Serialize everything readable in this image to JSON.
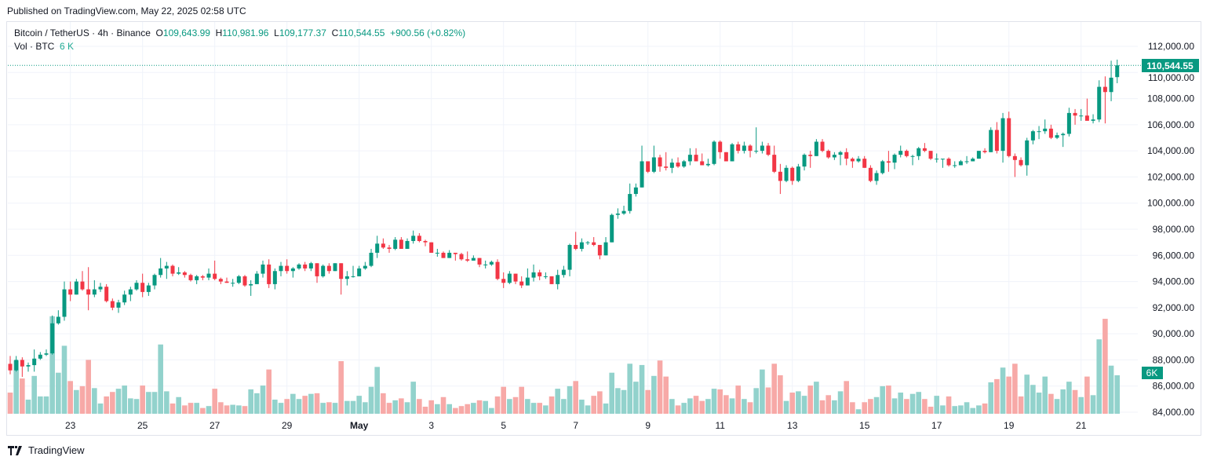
{
  "published": "Published on TradingView.com, May 22, 2025 02:58 UTC",
  "legend": {
    "symbol": "Bitcoin / TetherUS · 4h · Binance",
    "o_label": "O",
    "o_value": "109,643.99",
    "h_label": "H",
    "h_value": "110,981.96",
    "l_label": "L",
    "l_value": "109,177.37",
    "c_label": "C",
    "c_value": "110,544.55",
    "change": "+900.56 (+0.82%)",
    "vol_label": "Vol · BTC",
    "vol_value": "6 K"
  },
  "footer": {
    "brand": "TradingView"
  },
  "colors": {
    "up": "#089981",
    "down": "#f23645",
    "vol_up": "#92d2cc",
    "vol_down": "#f7a9a7",
    "grid": "#f0f3fa"
  },
  "chart_data": {
    "type": "candlestick",
    "symbol": "BTCUSDT",
    "interval": "4h",
    "first_candle": "2025-04-21 08:00",
    "columns": [
      "open",
      "high",
      "low",
      "close",
      "volume"
    ],
    "ylim": [
      84000,
      112000
    ],
    "y_ticks": [
      "112,000.00",
      "110,000.00",
      "108,000.00",
      "106,000.00",
      "104,000.00",
      "102,000.00",
      "100,000.00",
      "98,000.00",
      "96,000.00",
      "94,000.00",
      "92,000.00",
      "90,000.00",
      "88,000.00",
      "86,000.00",
      "84,000.00"
    ],
    "last_price_label": "110,544.55",
    "last_volume_label": "6K",
    "x_ticks": [
      {
        "label": "23",
        "date": "2025-04-23"
      },
      {
        "label": "25",
        "date": "2025-04-25"
      },
      {
        "label": "27",
        "date": "2025-04-27"
      },
      {
        "label": "29",
        "date": "2025-04-29"
      },
      {
        "label": "May",
        "date": "2025-05-01"
      },
      {
        "label": "3",
        "date": "2025-05-03"
      },
      {
        "label": "5",
        "date": "2025-05-05"
      },
      {
        "label": "7",
        "date": "2025-05-07"
      },
      {
        "label": "9",
        "date": "2025-05-09"
      },
      {
        "label": "11",
        "date": "2025-05-11"
      },
      {
        "label": "13",
        "date": "2025-05-13"
      },
      {
        "label": "15",
        "date": "2025-05-15"
      },
      {
        "label": "17",
        "date": "2025-05-17"
      },
      {
        "label": "19",
        "date": "2025-05-19"
      },
      {
        "label": "21",
        "date": "2025-05-21"
      }
    ],
    "grid": true,
    "candles": [
      [
        87700,
        88300,
        86900,
        87200,
        3300
      ],
      [
        87200,
        88300,
        87100,
        88000,
        8300
      ],
      [
        88000,
        88200,
        86700,
        87500,
        5500
      ],
      [
        87500,
        87800,
        87100,
        87600,
        2200
      ],
      [
        87600,
        88800,
        87100,
        88100,
        5900
      ],
      [
        88100,
        88600,
        88000,
        88400,
        2700
      ],
      [
        88400,
        88800,
        88300,
        88500,
        2700
      ],
      [
        88500,
        91400,
        88400,
        90800,
        15200
      ],
      [
        90800,
        91800,
        90700,
        91300,
        6400
      ],
      [
        91300,
        94000,
        91000,
        93400,
        10600
      ],
      [
        93400,
        94000,
        92500,
        93000,
        5100
      ],
      [
        93000,
        94200,
        93000,
        94000,
        3700
      ],
      [
        94000,
        94800,
        93300,
        93400,
        4300
      ],
      [
        93400,
        95100,
        91800,
        93000,
        8400
      ],
      [
        93000,
        94100,
        92800,
        93400,
        4000
      ],
      [
        93400,
        93900,
        93200,
        93600,
        1600
      ],
      [
        93600,
        93800,
        92400,
        92500,
        2700
      ],
      [
        92500,
        92700,
        91800,
        92000,
        3400
      ],
      [
        92000,
        92600,
        91600,
        92400,
        3900
      ],
      [
        92400,
        93300,
        92200,
        93000,
        4400
      ],
      [
        93000,
        93600,
        92500,
        93400,
        2400
      ],
      [
        93400,
        94100,
        93300,
        93900,
        2300
      ],
      [
        93900,
        94600,
        92800,
        93200,
        4400
      ],
      [
        93200,
        93900,
        92900,
        93700,
        3400
      ],
      [
        93700,
        94600,
        93400,
        94500,
        3400
      ],
      [
        94500,
        95800,
        94300,
        95000,
        10800
      ],
      [
        95000,
        95500,
        94200,
        95200,
        3500
      ],
      [
        95200,
        95300,
        94400,
        94600,
        1600
      ],
      [
        94600,
        95100,
        94500,
        94700,
        2600
      ],
      [
        94700,
        94800,
        94300,
        94500,
        1300
      ],
      [
        94500,
        94600,
        94000,
        94100,
        1700
      ],
      [
        94100,
        94500,
        93800,
        94400,
        1700
      ],
      [
        94400,
        94500,
        94100,
        94300,
        900
      ],
      [
        94300,
        95000,
        94100,
        94600,
        1200
      ],
      [
        94600,
        95600,
        94100,
        94200,
        3900
      ],
      [
        94200,
        94300,
        93800,
        94000,
        1800
      ],
      [
        94000,
        94300,
        93900,
        93900,
        1300
      ],
      [
        93900,
        94200,
        93600,
        93900,
        1400
      ],
      [
        93900,
        94500,
        93800,
        94400,
        1300
      ],
      [
        94400,
        94500,
        93600,
        93700,
        1200
      ],
      [
        93700,
        94100,
        92900,
        93800,
        3800
      ],
      [
        93800,
        94800,
        93800,
        94600,
        3200
      ],
      [
        94600,
        95600,
        94300,
        95300,
        4400
      ],
      [
        95300,
        95700,
        93500,
        93800,
        6900
      ],
      [
        93800,
        95000,
        93400,
        94800,
        2200
      ],
      [
        94800,
        95500,
        94400,
        95200,
        1700
      ],
      [
        95200,
        95700,
        94600,
        94800,
        2300
      ],
      [
        94800,
        95100,
        94300,
        95000,
        3100
      ],
      [
        95000,
        95400,
        94900,
        95300,
        2300
      ],
      [
        95300,
        95500,
        94800,
        95000,
        2800
      ],
      [
        95000,
        95500,
        94800,
        95400,
        3100
      ],
      [
        95400,
        95400,
        93900,
        94400,
        3200
      ],
      [
        94400,
        95300,
        94300,
        95200,
        1700
      ],
      [
        95200,
        95400,
        94600,
        94800,
        1800
      ],
      [
        94800,
        95400,
        94800,
        95400,
        1700
      ],
      [
        95400,
        95400,
        93000,
        94200,
        8200
      ],
      [
        94200,
        94800,
        93700,
        94400,
        2000
      ],
      [
        94400,
        95200,
        94300,
        94400,
        2000
      ],
      [
        94400,
        95200,
        94400,
        95000,
        2800
      ],
      [
        95000,
        95500,
        94900,
        95200,
        1800
      ],
      [
        95200,
        96500,
        95100,
        96200,
        4200
      ],
      [
        96200,
        97500,
        95800,
        96900,
        7300
      ],
      [
        96900,
        97300,
        96500,
        96600,
        3200
      ],
      [
        96600,
        96800,
        96200,
        96500,
        1700
      ],
      [
        96500,
        97400,
        96400,
        97200,
        2100
      ],
      [
        97200,
        97400,
        96500,
        96500,
        2400
      ],
      [
        96500,
        97300,
        96500,
        97100,
        1800
      ],
      [
        97100,
        97900,
        96900,
        97500,
        5000
      ],
      [
        97500,
        97700,
        97000,
        97100,
        2300
      ],
      [
        97100,
        97200,
        96700,
        97000,
        1100
      ],
      [
        97000,
        97000,
        96200,
        96200,
        2100
      ],
      [
        96200,
        96500,
        95900,
        96200,
        1500
      ],
      [
        96200,
        96300,
        95800,
        95800,
        2600
      ],
      [
        95800,
        96400,
        95800,
        96200,
        1500
      ],
      [
        96200,
        96200,
        95600,
        96100,
        900
      ],
      [
        96100,
        96200,
        95600,
        95700,
        1200
      ],
      [
        95700,
        96300,
        95500,
        95600,
        1500
      ],
      [
        95600,
        96000,
        95600,
        95800,
        1700
      ],
      [
        95800,
        95800,
        95100,
        95300,
        2100
      ],
      [
        95300,
        95600,
        95000,
        95300,
        2000
      ],
      [
        95300,
        95600,
        95200,
        95500,
        900
      ],
      [
        95500,
        95700,
        94100,
        94200,
        2700
      ],
      [
        94200,
        94700,
        93500,
        93900,
        4200
      ],
      [
        93900,
        94800,
        93800,
        94600,
        2300
      ],
      [
        94600,
        94600,
        93800,
        94000,
        2600
      ],
      [
        94000,
        94400,
        93500,
        93700,
        4200
      ],
      [
        93700,
        95000,
        93700,
        94300,
        2300
      ],
      [
        94300,
        95300,
        94000,
        94700,
        1700
      ],
      [
        94700,
        94900,
        94100,
        94400,
        1700
      ],
      [
        94400,
        94700,
        94200,
        94400,
        1300
      ],
      [
        94400,
        94400,
        93800,
        93800,
        2700
      ],
      [
        93800,
        94900,
        93400,
        94500,
        3900
      ],
      [
        94500,
        95200,
        94300,
        94900,
        2300
      ],
      [
        94900,
        96900,
        94400,
        96800,
        4300
      ],
      [
        96800,
        97800,
        96400,
        96500,
        5100
      ],
      [
        96500,
        97300,
        96300,
        97000,
        2200
      ],
      [
        97000,
        97100,
        96800,
        97000,
        1300
      ],
      [
        97000,
        97400,
        96700,
        96800,
        2800
      ],
      [
        96800,
        96800,
        95700,
        96000,
        3500
      ],
      [
        96000,
        97400,
        96000,
        97000,
        1600
      ],
      [
        97000,
        99200,
        97000,
        99100,
        6400
      ],
      [
        99100,
        99600,
        98800,
        99200,
        4000
      ],
      [
        99200,
        99800,
        99100,
        99400,
        3700
      ],
      [
        99400,
        101500,
        99200,
        100700,
        7800
      ],
      [
        100700,
        101500,
        100500,
        101200,
        5000
      ],
      [
        101200,
        104400,
        101200,
        103200,
        7600
      ],
      [
        103200,
        103200,
        102300,
        102400,
        3700
      ],
      [
        102400,
        104400,
        102300,
        103500,
        5900
      ],
      [
        103500,
        103700,
        102400,
        102800,
        8300
      ],
      [
        102800,
        103900,
        102500,
        102700,
        5800
      ],
      [
        102700,
        103400,
        102300,
        103100,
        2300
      ],
      [
        103100,
        103500,
        102700,
        102800,
        1300
      ],
      [
        102800,
        103300,
        102700,
        103200,
        1700
      ],
      [
        103200,
        104200,
        102900,
        103700,
        2400
      ],
      [
        103700,
        104200,
        103200,
        103200,
        2800
      ],
      [
        103200,
        103800,
        102900,
        102900,
        2000
      ],
      [
        102900,
        103400,
        102800,
        103000,
        2300
      ],
      [
        103000,
        104800,
        102900,
        104700,
        3900
      ],
      [
        104700,
        104800,
        103400,
        103900,
        3800
      ],
      [
        103900,
        103900,
        103200,
        103200,
        2900
      ],
      [
        103200,
        104600,
        103200,
        104500,
        2400
      ],
      [
        104500,
        104700,
        103800,
        104000,
        4400
      ],
      [
        104000,
        104700,
        103800,
        104400,
        2300
      ],
      [
        104400,
        104500,
        103500,
        104000,
        1800
      ],
      [
        104000,
        105800,
        103800,
        104000,
        4000
      ],
      [
        104000,
        104700,
        103800,
        104400,
        6900
      ],
      [
        104400,
        104600,
        103600,
        103700,
        4100
      ],
      [
        103700,
        104400,
        102300,
        102400,
        7800
      ],
      [
        102400,
        103000,
        100700,
        101700,
        6000
      ],
      [
        101700,
        102900,
        101600,
        102700,
        2000
      ],
      [
        102700,
        102800,
        101400,
        101700,
        3300
      ],
      [
        101700,
        103000,
        101600,
        102800,
        3500
      ],
      [
        102800,
        103800,
        102500,
        103700,
        2800
      ],
      [
        103700,
        104000,
        102700,
        103600,
        4400
      ],
      [
        103600,
        104900,
        103600,
        104700,
        5000
      ],
      [
        104700,
        104900,
        103900,
        104000,
        2100
      ],
      [
        104000,
        104100,
        103400,
        103500,
        2900
      ],
      [
        103500,
        103900,
        103300,
        103700,
        2100
      ],
      [
        103700,
        104000,
        102900,
        103900,
        3500
      ],
      [
        103900,
        104200,
        102900,
        103400,
        5100
      ],
      [
        103400,
        103500,
        102700,
        103200,
        1800
      ],
      [
        103200,
        103600,
        103100,
        103400,
        700
      ],
      [
        103400,
        103600,
        102700,
        102700,
        1800
      ],
      [
        102700,
        102900,
        101600,
        101700,
        2300
      ],
      [
        101700,
        102500,
        101400,
        102300,
        2600
      ],
      [
        102300,
        103300,
        102200,
        103200,
        4300
      ],
      [
        103200,
        104000,
        102400,
        103100,
        4400
      ],
      [
        103100,
        103800,
        102600,
        103700,
        2400
      ],
      [
        103700,
        104400,
        103500,
        104000,
        3300
      ],
      [
        104000,
        104100,
        103500,
        103600,
        2300
      ],
      [
        103600,
        103700,
        102900,
        103600,
        3100
      ],
      [
        103600,
        104300,
        103300,
        104200,
        3400
      ],
      [
        104200,
        104600,
        103900,
        104000,
        2300
      ],
      [
        104000,
        104000,
        103300,
        103400,
        1100
      ],
      [
        103400,
        103800,
        103100,
        103400,
        2800
      ],
      [
        103400,
        103400,
        102700,
        103400,
        1300
      ],
      [
        103400,
        103500,
        102800,
        102900,
        2700
      ],
      [
        102900,
        103200,
        102700,
        102900,
        1200
      ],
      [
        102900,
        103300,
        102900,
        103200,
        1300
      ],
      [
        103200,
        103600,
        103000,
        103200,
        1800
      ],
      [
        103200,
        103500,
        103200,
        103400,
        900
      ],
      [
        103400,
        104000,
        103400,
        104000,
        1300
      ],
      [
        104000,
        104200,
        103800,
        103900,
        1600
      ],
      [
        103900,
        105800,
        103900,
        105600,
        4900
      ],
      [
        105600,
        106200,
        103800,
        104000,
        5400
      ],
      [
        104000,
        106900,
        103100,
        106500,
        7200
      ],
      [
        106500,
        107000,
        103500,
        103600,
        5800
      ],
      [
        103600,
        103800,
        102000,
        103300,
        7800
      ],
      [
        103300,
        103500,
        102800,
        102900,
        2700
      ],
      [
        102900,
        105000,
        102100,
        104800,
        6100
      ],
      [
        104800,
        105600,
        104500,
        105500,
        4500
      ],
      [
        105500,
        105900,
        104900,
        105500,
        3300
      ],
      [
        105500,
        106400,
        105300,
        105700,
        5800
      ],
      [
        105700,
        106000,
        104900,
        105000,
        3100
      ],
      [
        105000,
        105400,
        104900,
        105200,
        2300
      ],
      [
        105200,
        105400,
        104300,
        105300,
        3800
      ],
      [
        105300,
        107300,
        105100,
        106900,
        5000
      ],
      [
        106900,
        107200,
        106000,
        106700,
        3700
      ],
      [
        106700,
        107200,
        106300,
        106700,
        2600
      ],
      [
        106700,
        108000,
        106400,
        106300,
        5800
      ],
      [
        106300,
        106800,
        106100,
        106400,
        2900
      ],
      [
        106400,
        109400,
        106200,
        108900,
        11600
      ],
      [
        108900,
        109700,
        106100,
        108500,
        14800
      ],
      [
        108500,
        110900,
        107800,
        109600,
        7500
      ],
      [
        109643.99,
        110981.96,
        109177.37,
        110544.55,
        6000
      ]
    ]
  }
}
